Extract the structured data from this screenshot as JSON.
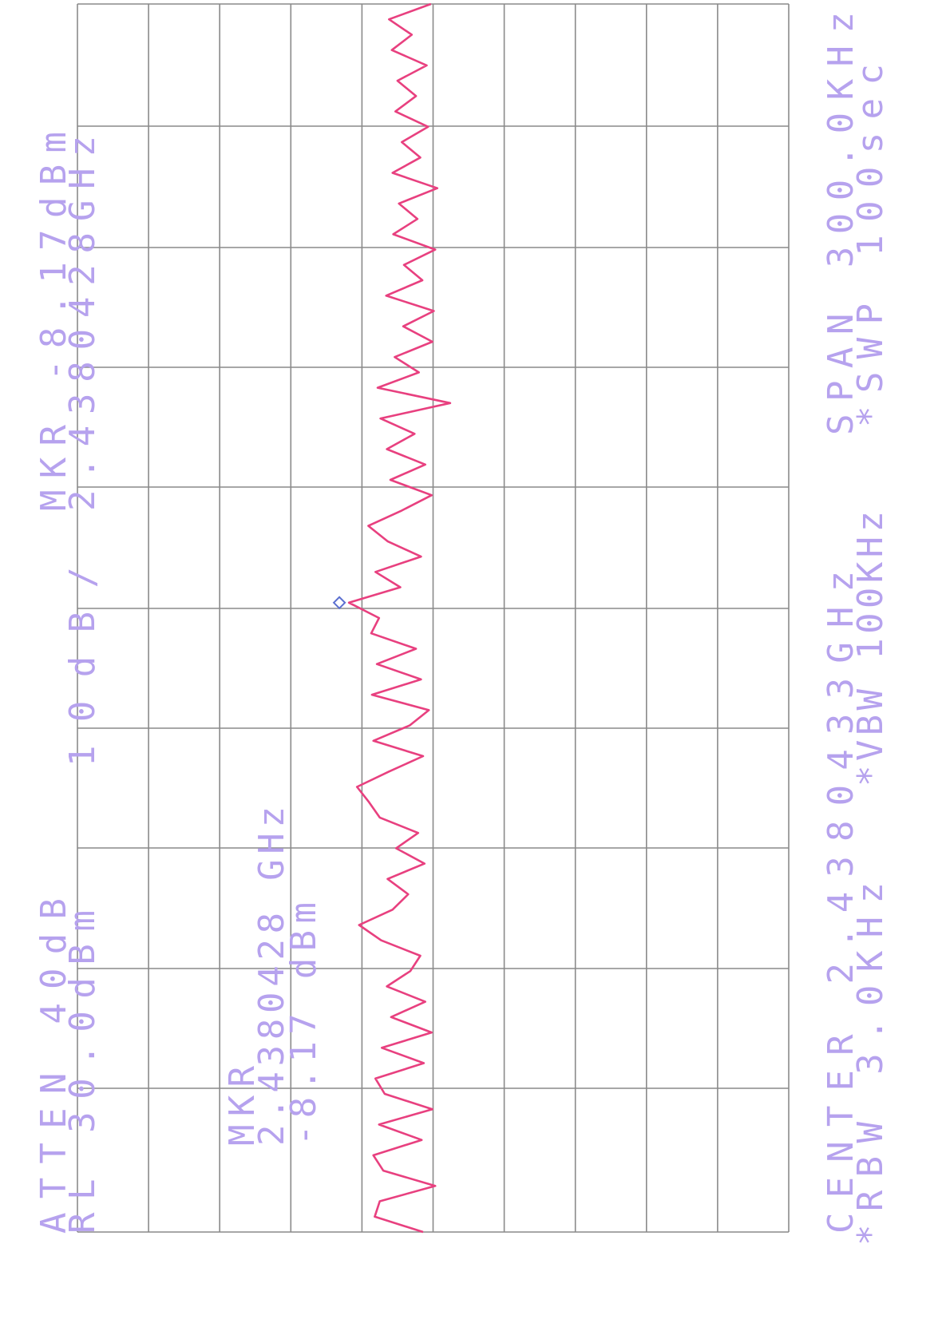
{
  "chart_data": {
    "type": "line",
    "atten": "ATTEN 40dB",
    "ref_level": "RL 30.0dBm",
    "scale": "10dB/",
    "marker_amplitude": "MKR -8.17dBm",
    "marker_frequency": "2.4380428GHz",
    "center": "CENTER 2.4380433GHz",
    "span": "SPAN 300.0KHz",
    "rbw": "*RBW 3.0KHz",
    "vbw": "*VBW 100KHz",
    "sweep": "*SWP 100sec",
    "marker_label": "MKR",
    "marker_frequency_readout": "2.4380428 GHz",
    "marker_amplitude_readout": "-8.17 dBm",
    "values": [
      -18.6,
      -11.8,
      -12.5,
      -20.3,
      -13.0,
      -11.6,
      -18.4,
      -12.4,
      -19.9,
      -13.2,
      -11.9,
      -18.7,
      -12.8,
      -19.8,
      -14.1,
      -18.9,
      -13.5,
      -16.8,
      -18.2,
      -12.7,
      -9.6,
      -14.3,
      -16.5,
      -13.6,
      -18.8,
      -14.8,
      -17.9,
      -12.5,
      -11.0,
      -9.3,
      -13.8,
      -18.6,
      -11.6,
      -16.7,
      -19.4,
      -11.4,
      -18.3,
      -12.1,
      -17.6,
      -11.3,
      -12.4,
      -8.17,
      -15.4,
      -11.9,
      -18.3,
      -13.6,
      -10.9,
      -15.6,
      -19.8,
      -14.0,
      -18.9,
      -13.5,
      -17.4,
      -12.6,
      -22.4,
      -12.2,
      -18.0,
      -14.6,
      -19.9,
      -15.8,
      -20.1,
      -13.4,
      -18.5,
      -15.9,
      -20.3,
      -14.4,
      -17.8,
      -15.2,
      -20.6,
      -14.3,
      -18.2,
      -15.6,
      -19.3,
      -14.7,
      -17.6,
      -15.0,
      -19.1,
      -14.2,
      -17.0,
      -13.8,
      -19.7
    ],
    "color": "#e8407f",
    "marker_color": "#5b6fd0",
    "ylim": [
      -70,
      30
    ],
    "yticks": [
      -70,
      -60,
      -50,
      -40,
      -30,
      -20,
      -10,
      0,
      10,
      20,
      30
    ],
    "grid": true
  }
}
